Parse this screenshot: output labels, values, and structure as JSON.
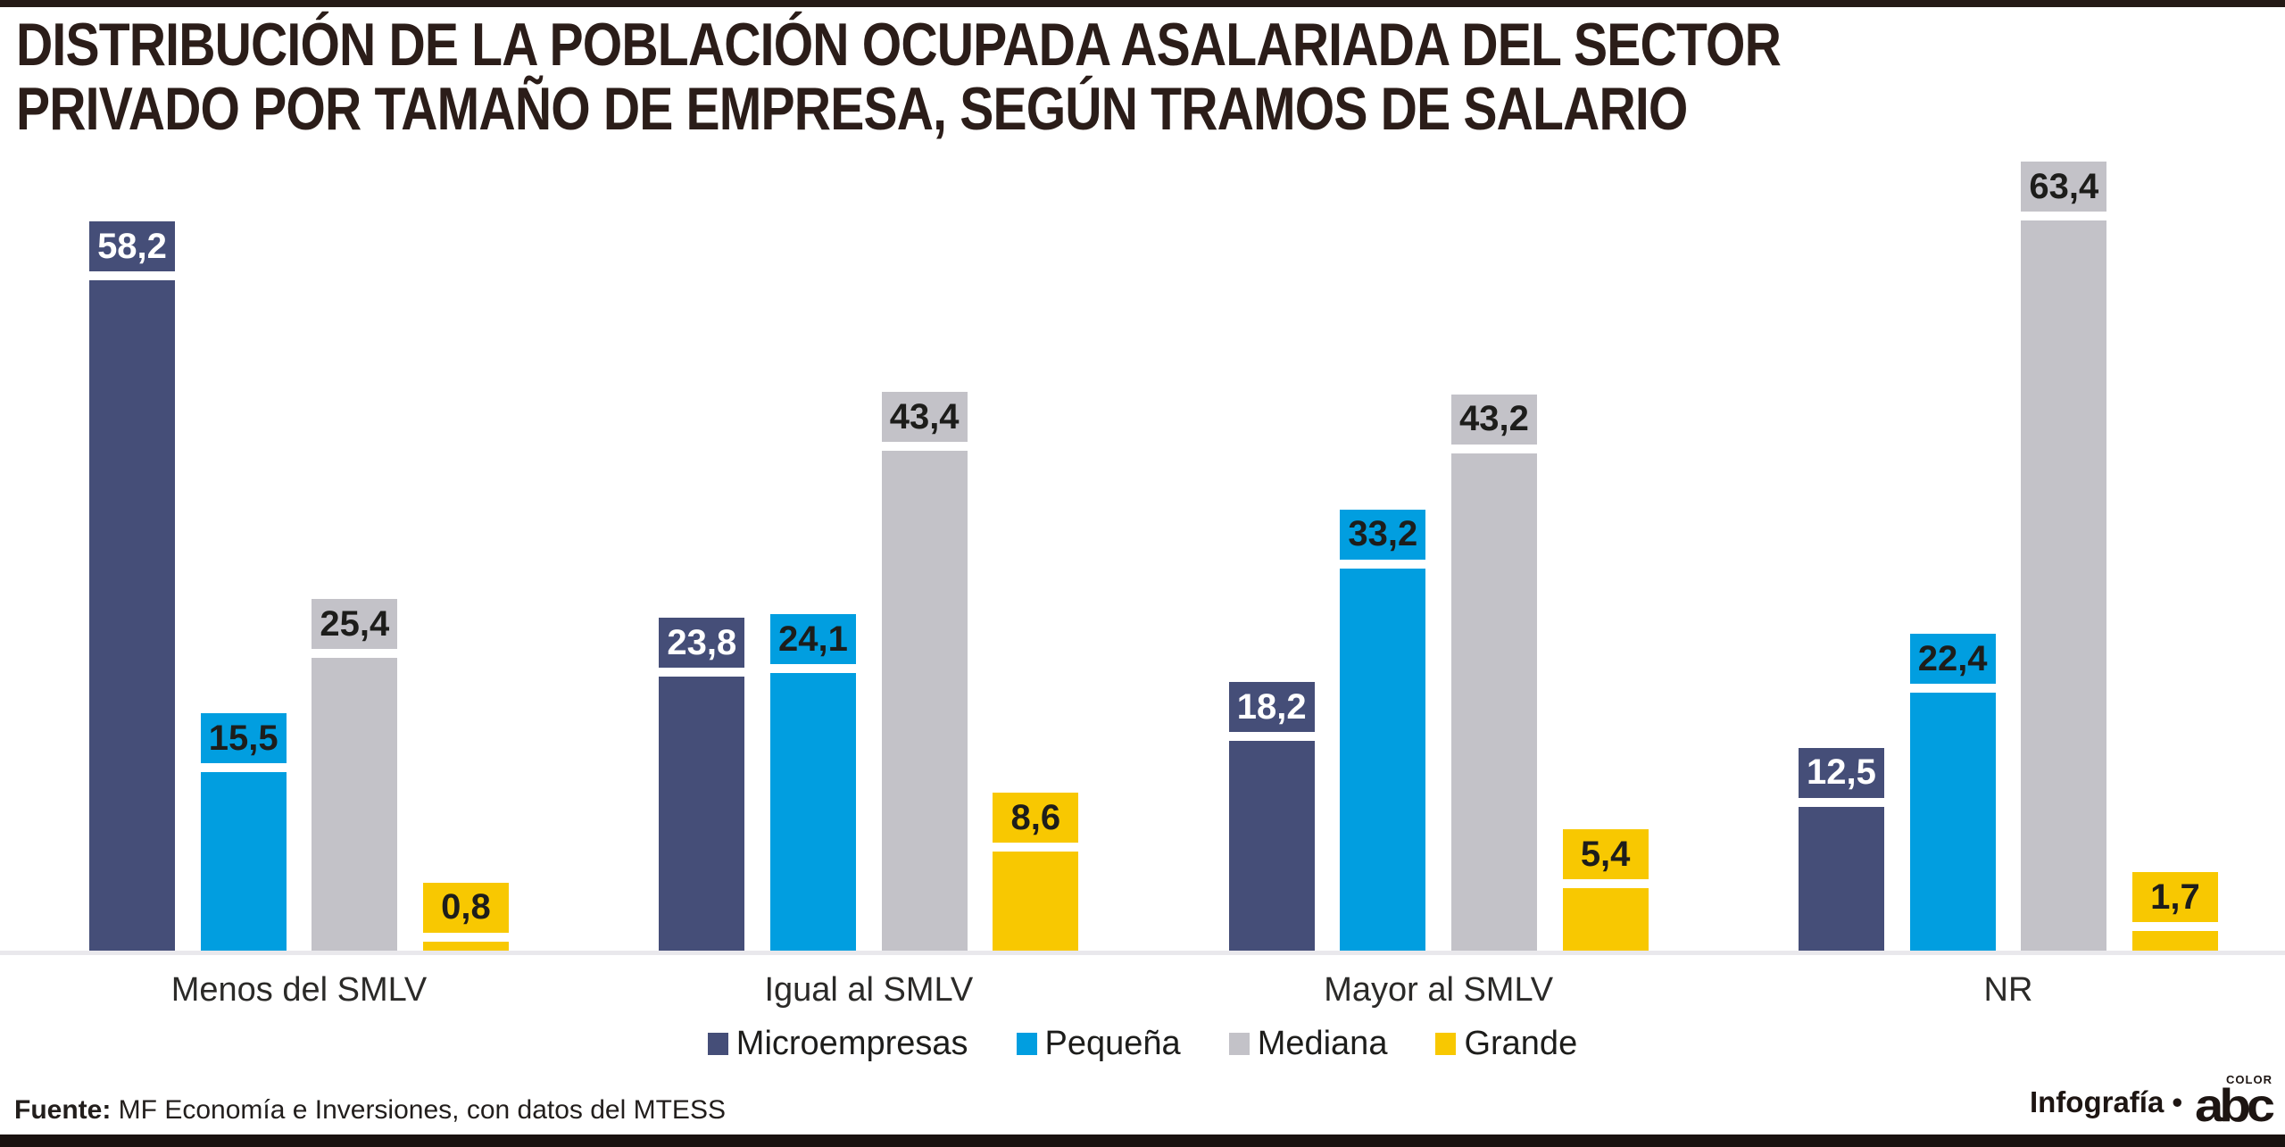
{
  "title_lines": {
    "line1": "DISTRIBUCIÓN DE LA POBLACIÓN OCUPADA ASALARIADA DEL SECTOR",
    "line2": "PRIVADO POR TAMAÑO DE EMPRESA, SEGÚN TRAMOS DE SALARIO"
  },
  "chart_data": {
    "type": "bar",
    "title": "DISTRIBUCIÓN DE LA POBLACIÓN OCUPADA ASALARIADA DEL SECTOR PRIVADO POR TAMAÑO DE EMPRESA, SEGÚN TRAMOS DE SALARIO",
    "categories": [
      "Menos del SMLV",
      "Igual al SMLV",
      "Mayor al SMLV",
      "NR"
    ],
    "series": [
      {
        "name": "Microempresas",
        "color": "#454e78",
        "label_color": "#ffffff",
        "values": [
          58.2,
          23.8,
          18.2,
          12.5
        ]
      },
      {
        "name": "Pequeña",
        "color": "#019ee0",
        "label_color": "#1d1d1b",
        "values": [
          15.5,
          24.1,
          33.2,
          22.4
        ]
      },
      {
        "name": "Mediana",
        "color": "#c3c2c8",
        "label_color": "#1d1d1b",
        "values": [
          25.4,
          43.4,
          43.2,
          63.4
        ]
      },
      {
        "name": "Grande",
        "color": "#f8c801",
        "label_color": "#1d1d1b",
        "values": [
          0.8,
          8.6,
          5.4,
          1.7
        ]
      }
    ],
    "value_format": "comma-decimal",
    "xlabel": "",
    "ylabel": "",
    "ylim": [
      0,
      66
    ],
    "grid": false,
    "legend_position": "bottom",
    "axis_line_color": "#e9e8ec"
  },
  "footer": {
    "source_label": "Fuente:",
    "source_text": " MF Economía e Inversiones, con datos del MTESS",
    "credit": "Infografía •",
    "logo_text": "abc",
    "logo_top": "COLOR"
  },
  "colors": {
    "top_rule": "#241a16",
    "bottom_rule": "#191210",
    "title_text": "#2b1d19"
  }
}
